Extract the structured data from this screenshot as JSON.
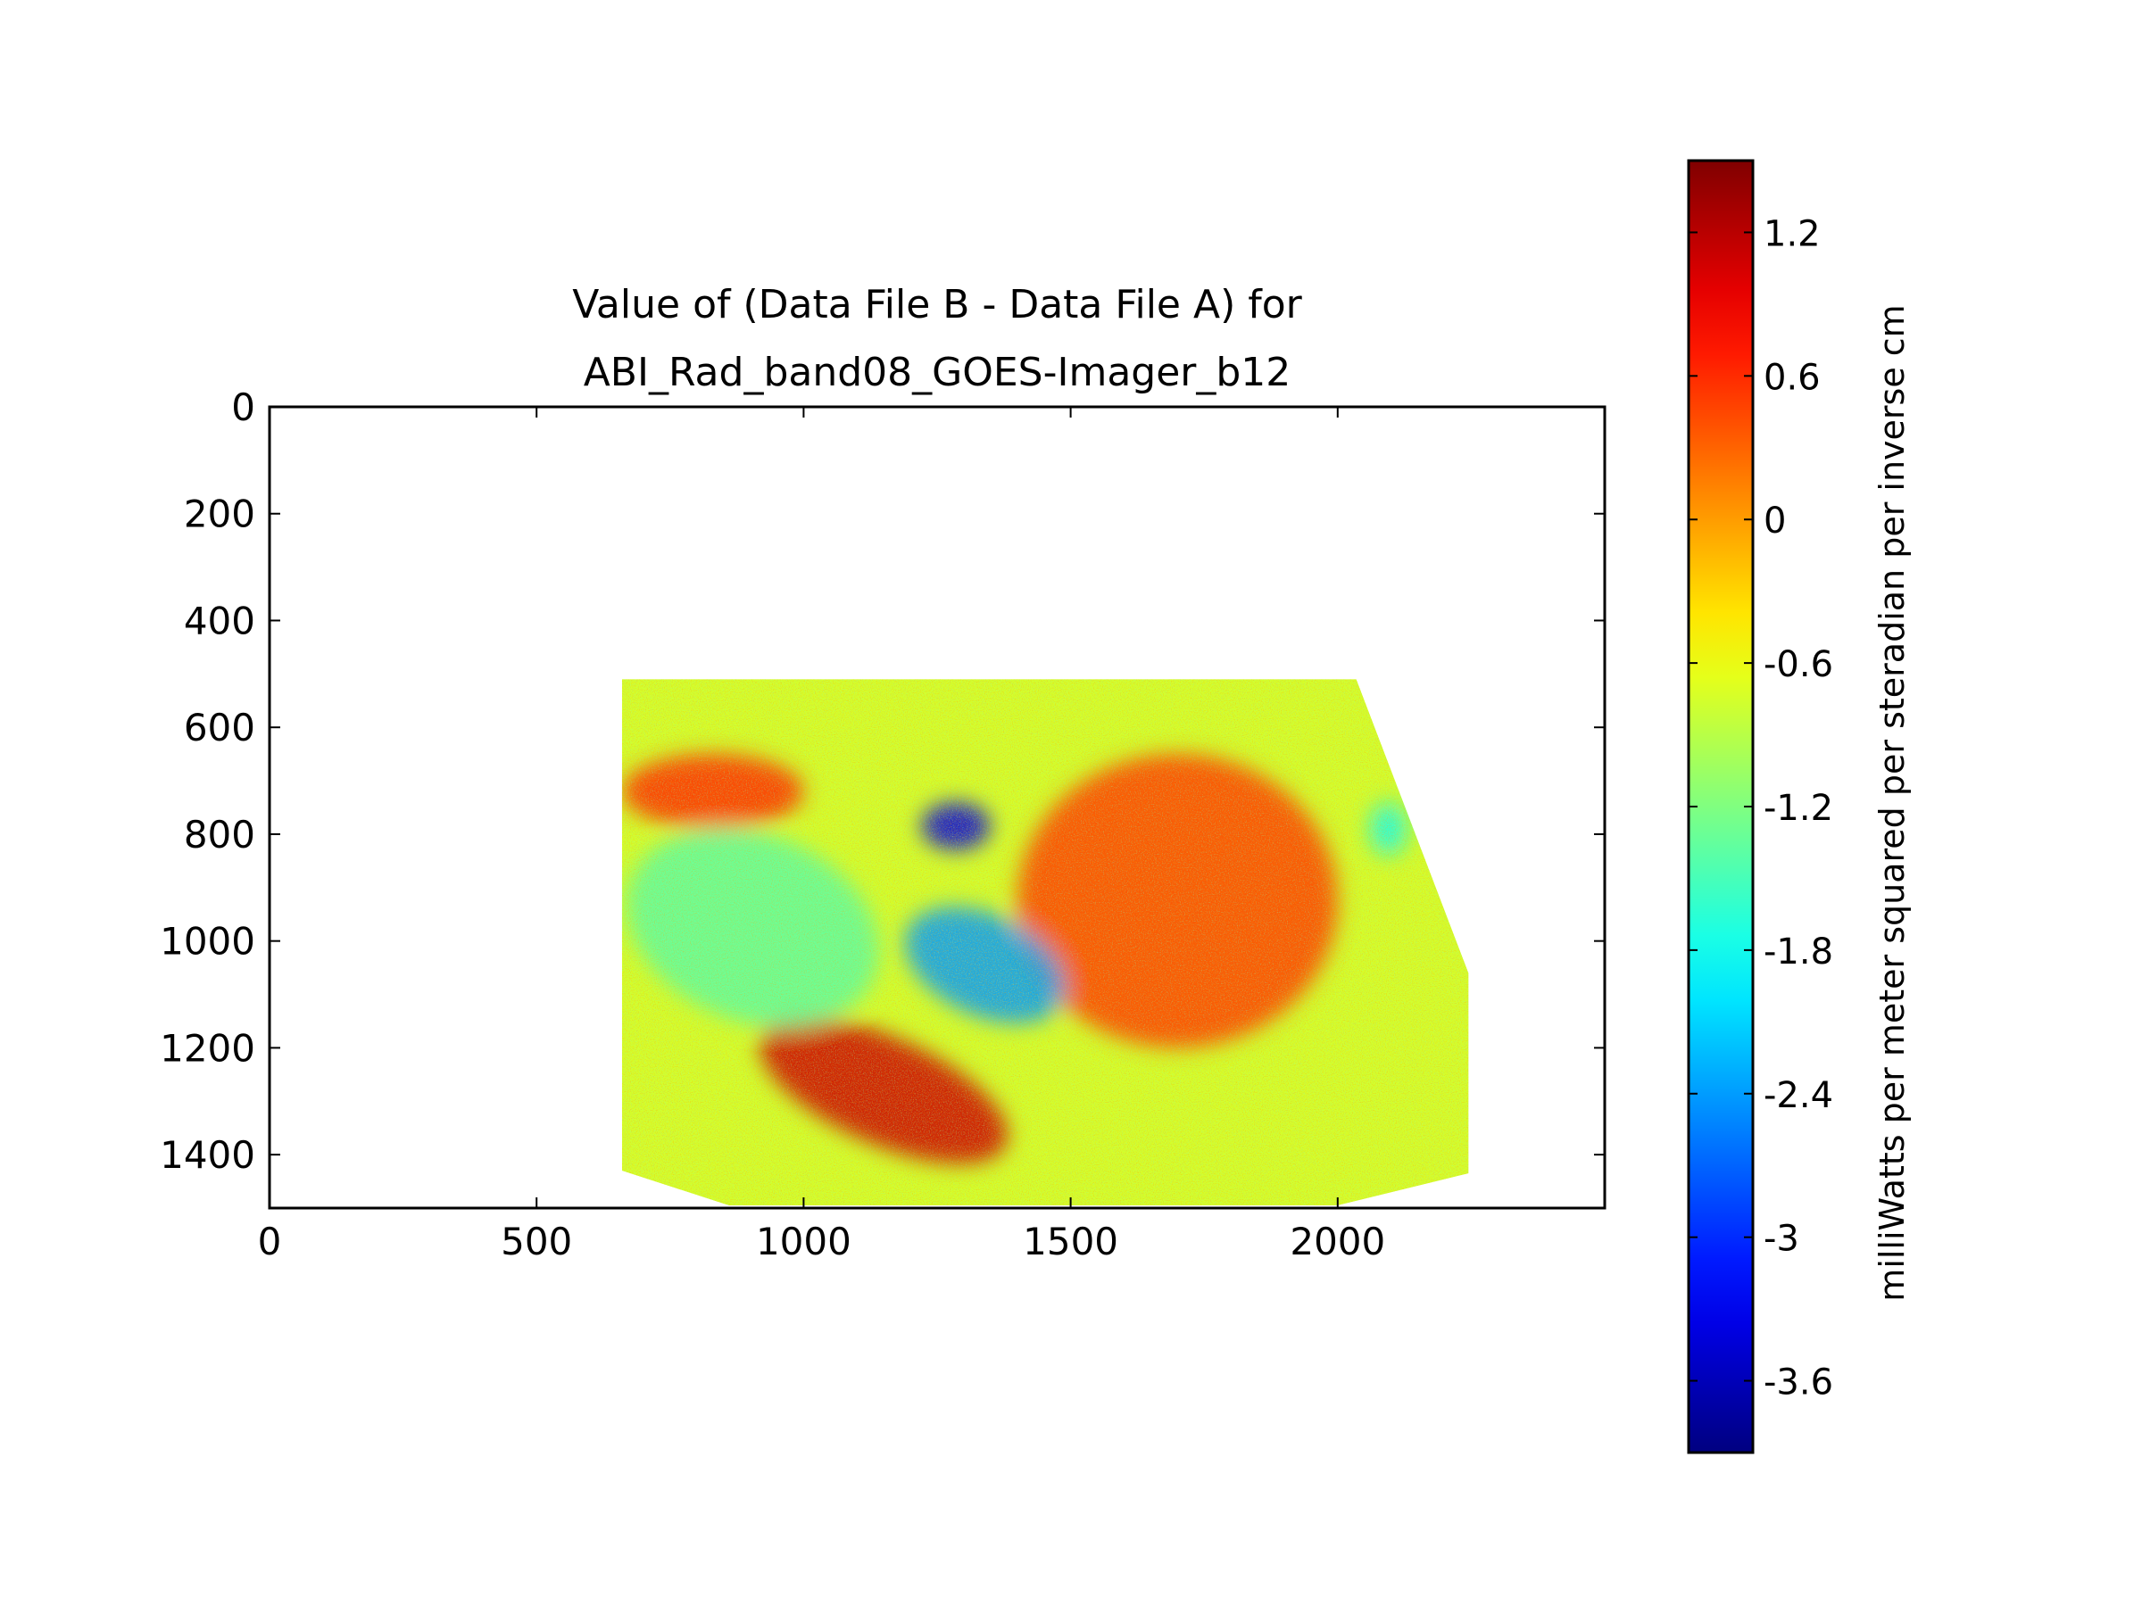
{
  "chart_data": {
    "type": "heatmap",
    "title_lines": [
      "Value of (Data File B - Data File A) for",
      "ABI_Rad_band08_GOES-Imager_b12"
    ],
    "x_axis": {
      "ticks": [
        0,
        500,
        1000,
        1500,
        2000
      ],
      "tick_labels": [
        "0",
        "500",
        "1000",
        "1500",
        "2000"
      ],
      "range": [
        0,
        2500
      ]
    },
    "y_axis": {
      "ticks": [
        0,
        200,
        400,
        600,
        800,
        1000,
        1200,
        1400
      ],
      "tick_labels": [
        "0",
        "200",
        "400",
        "600",
        "800",
        "1000",
        "1200",
        "1400"
      ],
      "range": [
        1500,
        0
      ],
      "inverted": true
    },
    "colorbar": {
      "label": "milliWatts per meter squared per steradian per inverse cm",
      "colormap": "jet",
      "range": [
        -3.9,
        1.5
      ],
      "ticks": [
        1.2,
        0.6,
        0,
        -0.6,
        -1.2,
        -1.8,
        -2.4,
        -3,
        -3.6
      ],
      "tick_labels": [
        "1.2",
        "0.6",
        "0",
        "-0.6",
        "-1.2",
        "-1.8",
        "-2.4",
        "-3",
        "-3.6"
      ]
    },
    "data_region_outline": [
      [
        660,
        510
      ],
      [
        2035,
        510
      ],
      [
        2245,
        1060
      ],
      [
        2245,
        1435
      ],
      [
        2000,
        1495
      ],
      [
        860,
        1495
      ],
      [
        660,
        1430
      ]
    ],
    "features": [
      {
        "kind": "warm band",
        "x": [
          660,
          1000
        ],
        "y": [
          650,
          790
        ],
        "value": 0.6
      },
      {
        "kind": "warm block",
        "x": [
          1400,
          2000
        ],
        "y": [
          650,
          1200
        ],
        "value": 0.5
      },
      {
        "kind": "warm streak",
        "x": [
          900,
          1400
        ],
        "y": [
          1180,
          1380
        ],
        "value": 1.1
      },
      {
        "kind": "cool band",
        "x": [
          660,
          1150
        ],
        "y": [
          800,
          1150
        ],
        "value": -1.4
      },
      {
        "kind": "cold core",
        "x": [
          1180,
          1500
        ],
        "y": [
          950,
          1140
        ],
        "value": -2.4
      },
      {
        "kind": "cold spots",
        "x": [
          1220,
          1350
        ],
        "y": [
          740,
          830
        ],
        "value": -3.4
      },
      {
        "kind": "cool patch",
        "x": [
          2060,
          2130
        ],
        "y": [
          740,
          840
        ],
        "value": -1.8
      }
    ]
  }
}
